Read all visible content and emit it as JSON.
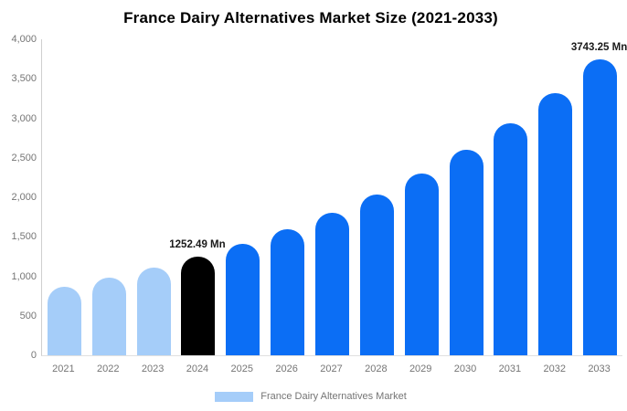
{
  "chart_data": {
    "type": "bar",
    "title": "France Dairy Alternatives Market Size (2021-2033)",
    "categories": [
      "2021",
      "2022",
      "2023",
      "2024",
      "2025",
      "2026",
      "2027",
      "2028",
      "2029",
      "2030",
      "2031",
      "2032",
      "2033"
    ],
    "values": [
      869,
      981,
      1109,
      1252.49,
      1415,
      1598,
      1804,
      2038,
      2301,
      2599,
      2935,
      3315,
      3743.25
    ],
    "bar_colors": [
      "#a5cdf9",
      "#a5cdf9",
      "#a5cdf9",
      "#000000",
      "#0b6ef5",
      "#0b6ef5",
      "#0b6ef5",
      "#0b6ef5",
      "#0b6ef5",
      "#0b6ef5",
      "#0b6ef5",
      "#0b6ef5",
      "#0b6ef5"
    ],
    "annotations": [
      {
        "category": "2024",
        "text": "1252.49 Mn"
      },
      {
        "category": "2033",
        "text": "3743.25 Mn"
      }
    ],
    "xlabel": "",
    "ylabel": "",
    "ylim": [
      0,
      4000
    ],
    "y_ticks": [
      {
        "value": 0,
        "label": "0"
      },
      {
        "value": 500,
        "label": "500"
      },
      {
        "value": 1000,
        "label": "1,000"
      },
      {
        "value": 1500,
        "label": "1,500"
      },
      {
        "value": 2000,
        "label": "2,000"
      },
      {
        "value": 2500,
        "label": "2,500"
      },
      {
        "value": 3000,
        "label": "3,000"
      },
      {
        "value": 3500,
        "label": "3,500"
      },
      {
        "value": 4000,
        "label": "4,000"
      }
    ],
    "grid": false,
    "legend": {
      "position": "bottom",
      "label": "France Dairy Alternatives Market",
      "swatch_color": "#a5cdf9"
    },
    "colors": {
      "historical_bar": "#a5cdf9",
      "base_year_bar": "#000000",
      "forecast_bar": "#0b6ef5",
      "axis_line": "#cfcfcf",
      "baseline": "#e0e0e0",
      "tick_text": "#757575",
      "title_text": "#000000",
      "data_label_text": "#1a1a1a"
    }
  }
}
